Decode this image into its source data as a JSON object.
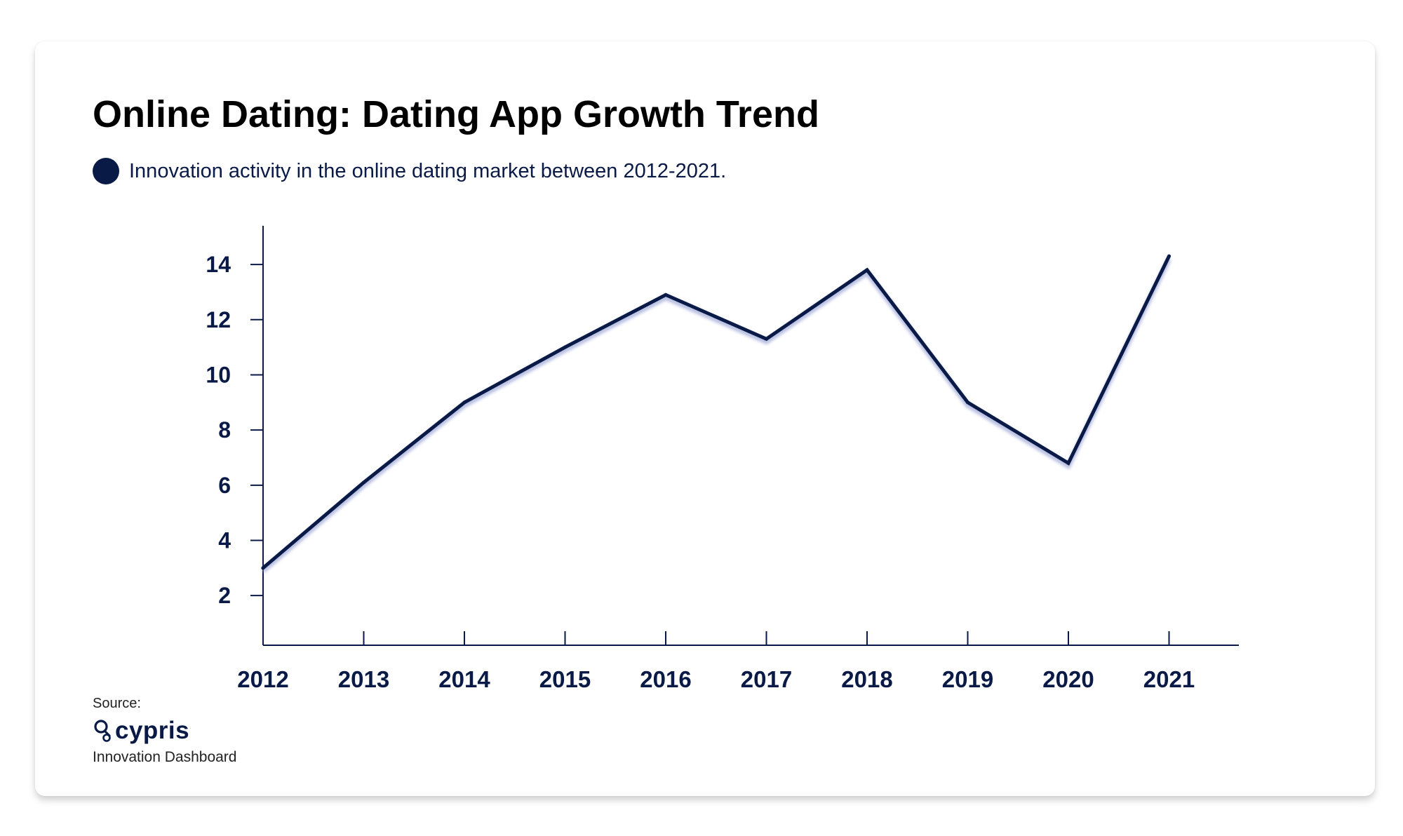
{
  "title": "Online Dating: Dating App Growth Trend",
  "legend_text": "Innovation activity in the online dating market between 2012-2021.",
  "source": {
    "label": "Source:",
    "brand": "cypris",
    "subtitle": "Innovation Dashboard"
  },
  "colors": {
    "primary": "#0a1a47",
    "line_shadow": "#9fa8d8"
  },
  "icons": {
    "logo": "cypris-logo-icon"
  },
  "chart_data": {
    "type": "line",
    "x": [
      "2012",
      "2013",
      "2014",
      "2015",
      "2016",
      "2017",
      "2018",
      "2019",
      "2020",
      "2021"
    ],
    "series": [
      {
        "values": [
          3.0,
          6.1,
          9.0,
          11.0,
          12.9,
          11.3,
          13.8,
          9.0,
          6.8,
          14.3
        ]
      }
    ],
    "yticks": [
      2,
      4,
      6,
      8,
      10,
      12,
      14
    ],
    "ylim": [
      0.2,
      15.4
    ],
    "grid": false,
    "xlabel": "",
    "ylabel": ""
  }
}
